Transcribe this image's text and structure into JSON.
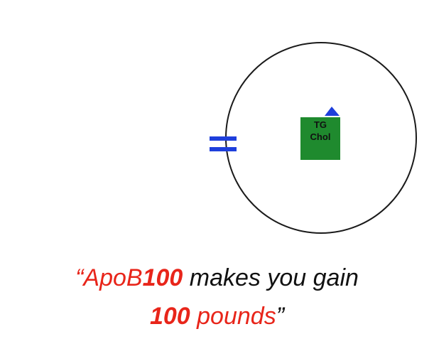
{
  "particle": {
    "core_lines": [
      "TG",
      "Chol"
    ],
    "core_color": "#1f8a2e",
    "marker_color": "#1e3fdc",
    "outline_color": "#1a1a1a"
  },
  "quote": {
    "open_mark": "“",
    "apob": "ApoB",
    "num_a": "100",
    "rest_line1": " makes you gain",
    "num_b": "100",
    "pounds": " pounds",
    "close_mark": "”",
    "accent_color": "#e8251a"
  }
}
